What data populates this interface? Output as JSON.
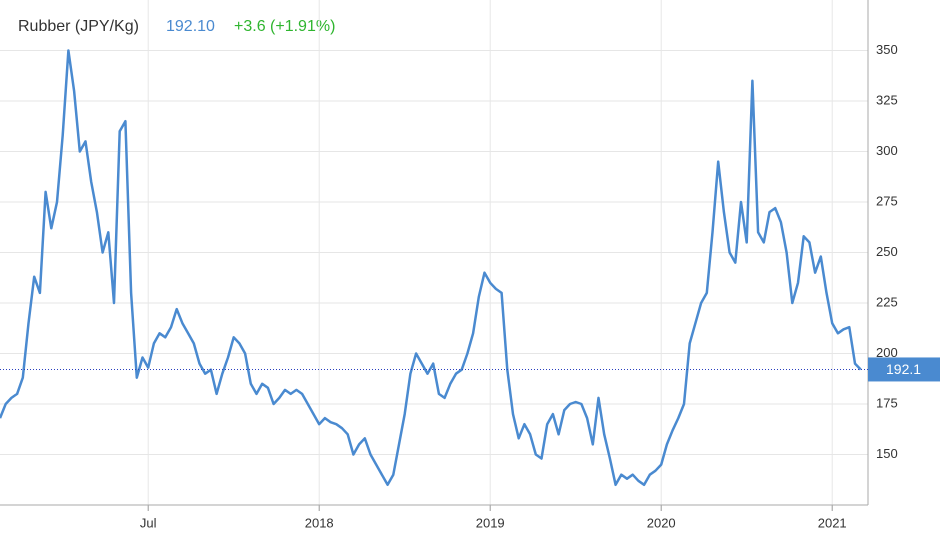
{
  "chart_data": {
    "type": "line",
    "title": "Rubber (JPY/Kg)",
    "current_price": "192.10",
    "change": "+3.6 (+1.91%)",
    "last_value_label": "192.1",
    "categories": [
      null,
      null,
      null,
      null,
      null,
      null,
      null,
      null,
      null,
      null,
      null,
      null,
      null,
      null,
      null,
      null,
      null,
      null,
      null,
      null,
      null,
      null,
      null,
      null,
      null,
      null,
      "Jul",
      null,
      null,
      null,
      null,
      null,
      null,
      null,
      null,
      null,
      null,
      null,
      null,
      null,
      null,
      null,
      null,
      null,
      null,
      null,
      null,
      null,
      null,
      null,
      null,
      null,
      null,
      null,
      null,
      null,
      "2018",
      null,
      null,
      null,
      null,
      null,
      null,
      null,
      null,
      null,
      null,
      null,
      null,
      null,
      null,
      null,
      null,
      null,
      null,
      null,
      null,
      null,
      null,
      null,
      null,
      null,
      null,
      null,
      null,
      null,
      "2019",
      null,
      null,
      null,
      null,
      null,
      null,
      null,
      null,
      null,
      null,
      null,
      null,
      null,
      null,
      null,
      null,
      null,
      null,
      null,
      null,
      null,
      null,
      null,
      null,
      null,
      null,
      null,
      null,
      null,
      "2020",
      null,
      null,
      null,
      null,
      null,
      null,
      null,
      null,
      null,
      null,
      null,
      null,
      null,
      null,
      null,
      null,
      null,
      null,
      null,
      null,
      null,
      null,
      null,
      null,
      null,
      null,
      null,
      null,
      null,
      "2021",
      null,
      null,
      null,
      null,
      null
    ],
    "series": [
      {
        "name": "Rubber",
        "color": "#4a8ad0",
        "values": [
          168,
          175,
          178,
          180,
          188,
          215,
          238,
          230,
          280,
          262,
          275,
          308,
          350,
          330,
          300,
          305,
          285,
          270,
          250,
          260,
          225,
          310,
          315,
          230,
          188,
          198,
          193,
          205,
          210,
          208,
          213,
          222,
          215,
          210,
          205,
          195,
          190,
          192,
          180,
          190,
          198,
          208,
          205,
          200,
          185,
          180,
          185,
          183,
          175,
          178,
          182,
          180,
          182,
          180,
          175,
          170,
          165,
          168,
          166,
          165,
          163,
          160,
          150,
          155,
          158,
          150,
          145,
          140,
          135,
          140,
          155,
          170,
          190,
          200,
          195,
          190,
          195,
          180,
          178,
          185,
          190,
          192,
          200,
          210,
          228,
          240,
          235,
          232,
          230,
          192,
          170,
          158,
          165,
          160,
          150,
          148,
          165,
          170,
          160,
          172,
          175,
          176,
          175,
          168,
          155,
          178,
          160,
          148,
          135,
          140,
          138,
          140,
          137,
          135,
          140,
          142,
          145,
          155,
          162,
          168,
          175,
          205,
          215,
          225,
          230,
          260,
          295,
          270,
          250,
          245,
          275,
          255,
          335,
          260,
          255,
          270,
          272,
          265,
          250,
          225,
          235,
          258,
          255,
          240,
          248,
          230,
          215,
          210,
          212,
          213,
          195,
          192.1
        ]
      }
    ],
    "ylim": [
      125,
      375
    ],
    "yticks": [
      150,
      175,
      200,
      225,
      250,
      275,
      300,
      325,
      350
    ],
    "grid": true
  }
}
